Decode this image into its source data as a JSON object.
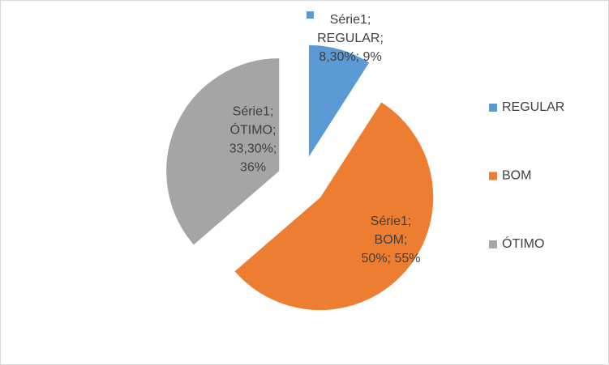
{
  "chart_data": {
    "type": "pie",
    "series_name": "Série1",
    "categories": [
      "REGULAR",
      "BOM",
      "ÓTIMO"
    ],
    "values": [
      8.3,
      50,
      33.3
    ],
    "value_labels": [
      [
        "Série1;",
        "REGULAR;",
        "8,30%; 9%"
      ],
      [
        "Série1;",
        "BOM;",
        "50%; 55%"
      ],
      [
        "Série1;",
        "ÓTIMO;",
        "33,30%;",
        "36%"
      ]
    ],
    "colors": [
      "#5b9bd5",
      "#ed7d31",
      "#a5a5a5"
    ],
    "legend": "right"
  }
}
